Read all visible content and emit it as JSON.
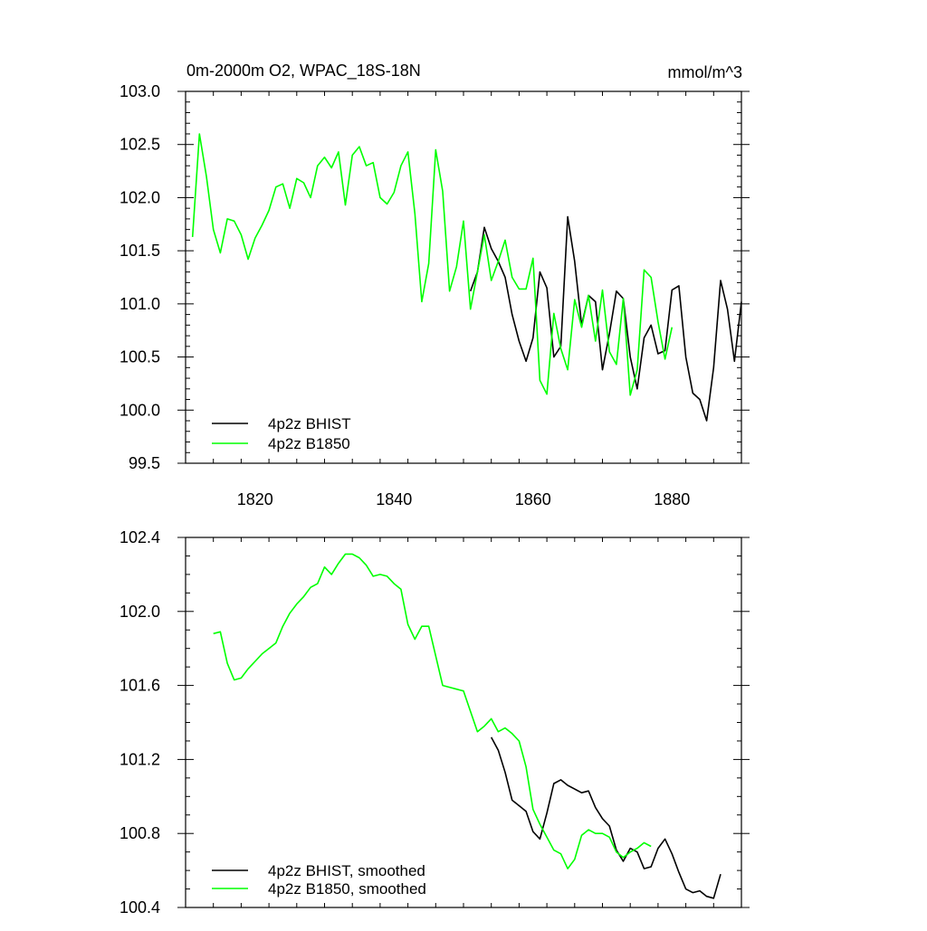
{
  "chart_data": [
    {
      "type": "line",
      "title": "0m-2000m O2, WPAC_18S-18N",
      "units": "mmol/m^3",
      "xlabel": "",
      "ylabel": "",
      "xlim": [
        1810,
        1890
      ],
      "ylim": [
        99.5,
        103.0
      ],
      "x_ticks": [
        1820,
        1840,
        1860,
        1880
      ],
      "x_tick_labels": [
        "1820",
        "1840",
        "1860",
        "1880"
      ],
      "y_ticks": [
        99.5,
        100.0,
        100.5,
        101.0,
        101.5,
        102.0,
        102.5,
        103.0
      ],
      "y_tick_labels": [
        "99.5",
        "100.0",
        "100.5",
        "101.0",
        "101.5",
        "102.0",
        "102.5",
        "103.0"
      ],
      "legend_position": "bottom-left",
      "series": [
        {
          "name": "4p2z BHIST",
          "color": "#000000",
          "x": [
            1851,
            1852,
            1853,
            1854,
            1855,
            1856,
            1857,
            1858,
            1859,
            1860,
            1861,
            1862,
            1863,
            1864,
            1865,
            1866,
            1867,
            1868,
            1869,
            1870,
            1871,
            1872,
            1873,
            1874,
            1875,
            1876,
            1877,
            1878,
            1879,
            1880,
            1881,
            1882,
            1883,
            1884,
            1885,
            1886,
            1887,
            1888,
            1889,
            1890
          ],
          "values": [
            101.12,
            101.3,
            101.72,
            101.52,
            101.4,
            101.25,
            100.9,
            100.65,
            100.46,
            100.68,
            101.3,
            101.15,
            100.5,
            100.6,
            101.82,
            101.4,
            100.8,
            101.08,
            101.02,
            100.38,
            100.72,
            101.12,
            101.05,
            100.5,
            100.2,
            100.68,
            100.8,
            100.53,
            100.56,
            101.13,
            101.17,
            100.5,
            100.16,
            100.1,
            99.9,
            100.4,
            101.22,
            100.95,
            100.46,
            101.02
          ]
        },
        {
          "name": "4p2z B1850",
          "color": "#00ff00",
          "x": [
            1811,
            1812,
            1813,
            1814,
            1815,
            1816,
            1817,
            1818,
            1819,
            1820,
            1821,
            1822,
            1823,
            1824,
            1825,
            1826,
            1827,
            1828,
            1829,
            1830,
            1831,
            1832,
            1833,
            1834,
            1835,
            1836,
            1837,
            1838,
            1839,
            1840,
            1841,
            1842,
            1843,
            1844,
            1845,
            1846,
            1847,
            1848,
            1849,
            1850,
            1851,
            1852,
            1853,
            1854,
            1855,
            1856,
            1857,
            1858,
            1859,
            1860,
            1861,
            1862,
            1863,
            1864,
            1865,
            1866,
            1867,
            1868,
            1869,
            1870,
            1871,
            1872,
            1873,
            1874,
            1875,
            1876,
            1877,
            1878,
            1879,
            1880
          ],
          "values": [
            101.63,
            102.6,
            102.2,
            101.7,
            101.48,
            101.8,
            101.78,
            101.65,
            101.42,
            101.62,
            101.74,
            101.88,
            102.1,
            102.13,
            101.9,
            102.18,
            102.14,
            102.0,
            102.3,
            102.38,
            102.28,
            102.43,
            101.93,
            102.4,
            102.48,
            102.3,
            102.33,
            102.0,
            101.94,
            102.05,
            102.3,
            102.43,
            101.85,
            101.02,
            101.38,
            102.45,
            102.06,
            101.12,
            101.35,
            101.78,
            100.95,
            101.3,
            101.65,
            101.22,
            101.4,
            101.6,
            101.25,
            101.14,
            101.14,
            101.43,
            100.28,
            100.15,
            100.91,
            100.58,
            100.38,
            101.04,
            100.78,
            101.08,
            100.65,
            101.13,
            100.55,
            100.43,
            101.05,
            100.14,
            100.38,
            101.32,
            101.25,
            100.83,
            100.48,
            100.78
          ]
        }
      ]
    },
    {
      "type": "line",
      "title": "",
      "xlabel": "",
      "ylabel": "",
      "xlim": [
        1810,
        1890
      ],
      "ylim": [
        100.4,
        102.4
      ],
      "x_ticks": [
        1820,
        1840,
        1860,
        1880
      ],
      "x_tick_labels": [
        "",
        "",
        "",
        ""
      ],
      "y_ticks": [
        100.4,
        100.8,
        101.2,
        101.6,
        102.0,
        102.4
      ],
      "y_tick_labels": [
        "100.4",
        "100.8",
        "101.2",
        "101.6",
        "102.0",
        "102.4"
      ],
      "legend_position": "bottom-left",
      "series": [
        {
          "name": "4p2z BHIST, smoothed",
          "color": "#000000",
          "x": [
            1854,
            1855,
            1856,
            1857,
            1858,
            1859,
            1860,
            1861,
            1862,
            1863,
            1864,
            1865,
            1866,
            1867,
            1868,
            1869,
            1870,
            1871,
            1872,
            1873,
            1874,
            1875,
            1876,
            1877,
            1878,
            1879,
            1880,
            1881,
            1882,
            1883,
            1884,
            1885,
            1886,
            1887
          ],
          "values": [
            101.32,
            101.25,
            101.13,
            100.98,
            100.95,
            100.92,
            100.81,
            100.77,
            100.91,
            101.07,
            101.09,
            101.06,
            101.04,
            101.02,
            101.03,
            100.94,
            100.88,
            100.84,
            100.71,
            100.65,
            100.72,
            100.7,
            100.61,
            100.62,
            100.72,
            100.77,
            100.69,
            100.59,
            100.5,
            100.48,
            100.49,
            100.46,
            100.45,
            100.58
          ]
        },
        {
          "name": "4p2z B1850, smoothed",
          "color": "#00ff00",
          "x": [
            1814,
            1815,
            1816,
            1817,
            1818,
            1819,
            1820,
            1821,
            1822,
            1823,
            1824,
            1825,
            1826,
            1827,
            1828,
            1829,
            1830,
            1831,
            1832,
            1833,
            1834,
            1835,
            1836,
            1837,
            1838,
            1839,
            1840,
            1841,
            1842,
            1843,
            1844,
            1845,
            1846,
            1847,
            1848,
            1849,
            1850,
            1851,
            1852,
            1853,
            1854,
            1855,
            1856,
            1857,
            1858,
            1859,
            1860,
            1861,
            1862,
            1863,
            1864,
            1865,
            1866,
            1867,
            1868,
            1869,
            1870,
            1871,
            1872,
            1873,
            1874,
            1875,
            1876,
            1877
          ],
          "values": [
            101.88,
            101.89,
            101.72,
            101.63,
            101.64,
            101.69,
            101.73,
            101.77,
            101.8,
            101.83,
            101.92,
            101.99,
            102.04,
            102.08,
            102.13,
            102.15,
            102.24,
            102.2,
            102.26,
            102.31,
            102.31,
            102.29,
            102.25,
            102.19,
            102.2,
            102.19,
            102.15,
            102.12,
            101.93,
            101.85,
            101.92,
            101.92,
            101.76,
            101.6,
            101.59,
            101.58,
            101.57,
            101.46,
            101.35,
            101.38,
            101.42,
            101.35,
            101.37,
            101.34,
            101.3,
            101.16,
            100.93,
            100.85,
            100.78,
            100.71,
            100.69,
            100.61,
            100.66,
            100.79,
            100.82,
            100.8,
            100.8,
            100.78,
            100.7,
            100.67,
            100.7,
            100.72,
            100.75,
            100.73
          ]
        }
      ]
    }
  ]
}
